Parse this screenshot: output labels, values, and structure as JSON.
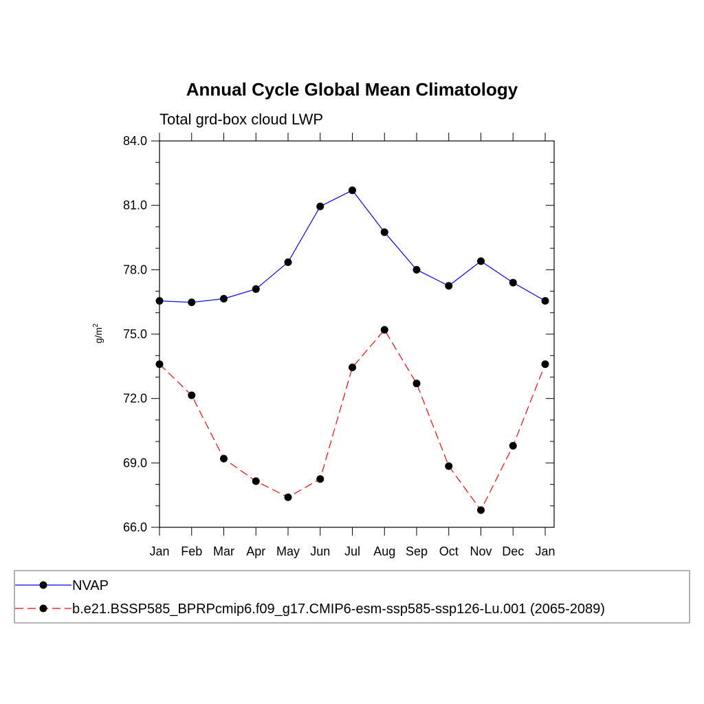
{
  "chart_data": {
    "type": "line",
    "title": "Annual Cycle Global Mean Climatology",
    "subtitle": "Total grd-box cloud LWP",
    "ylabel": "g/m",
    "ylabel_superscript": "2",
    "xlabel": "",
    "categories": [
      "Jan",
      "Feb",
      "Mar",
      "Apr",
      "May",
      "Jun",
      "Jul",
      "Aug",
      "Sep",
      "Oct",
      "Nov",
      "Dec",
      "Jan"
    ],
    "ylim": [
      66.0,
      84.0
    ],
    "yticks": [
      "66.0",
      "69.0",
      "72.0",
      "75.0",
      "78.0",
      "81.0",
      "84.0"
    ],
    "grid": false,
    "legend_position": "bottom",
    "series": [
      {
        "name": "NVAP",
        "color": "#0000ff",
        "style": "solid",
        "values": [
          76.55,
          76.48,
          76.65,
          77.1,
          78.35,
          80.95,
          81.7,
          79.75,
          78.0,
          77.25,
          78.4,
          77.4,
          76.55
        ]
      },
      {
        "name": "b.e21.BSSP585_BPRPcmip6.f09_g17.CMIP6-esm-ssp585-ssp126-Lu.001 (2065-2089)",
        "color": "#ff0000",
        "style": "dashed",
        "values": [
          73.6,
          72.15,
          69.2,
          68.15,
          67.4,
          68.25,
          73.45,
          75.2,
          72.7,
          68.85,
          66.8,
          69.8,
          73.6
        ]
      }
    ]
  }
}
